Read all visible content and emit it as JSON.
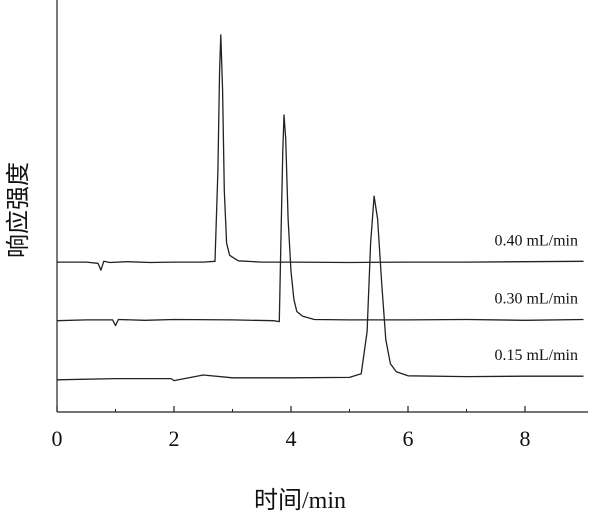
{
  "chart_data": {
    "type": "line",
    "xlabel": "时间/min",
    "ylabel": "响应强度",
    "xlim": [
      0,
      9
    ],
    "ylim": [
      0,
      100
    ],
    "xticks": [
      0,
      2,
      4,
      6,
      8
    ],
    "xminor_ticks": [
      1,
      3,
      5,
      7
    ],
    "grid": false,
    "series": [
      {
        "name": "0.40 mL/min",
        "color": "#222222",
        "x": [
          0,
          0.5,
          0.7,
          0.75,
          0.8,
          0.9,
          1.2,
          1.6,
          2.0,
          2.5,
          2.7,
          2.75,
          2.78,
          2.8,
          2.83,
          2.86,
          2.9,
          2.95,
          3.0,
          3.1,
          3.5,
          4.0,
          5.0,
          6.0,
          7.0,
          8.0,
          9.0
        ],
        "values": [
          37.3,
          37.3,
          37.0,
          35.3,
          37.5,
          37.2,
          37.4,
          37.2,
          37.3,
          37.3,
          37.5,
          60,
          85,
          93.8,
          80,
          55,
          42,
          39,
          38.5,
          37.6,
          37.3,
          37.3,
          37.2,
          37.3,
          37.3,
          37.4,
          37.5
        ]
      },
      {
        "name": "0.30 mL/min",
        "color": "#222222",
        "x": [
          0,
          0.5,
          0.95,
          1.0,
          1.05,
          1.5,
          2.0,
          3.0,
          3.7,
          3.8,
          3.83,
          3.86,
          3.88,
          3.91,
          3.95,
          4.0,
          4.05,
          4.1,
          4.2,
          4.4,
          5,
          6,
          7,
          8,
          9
        ],
        "values": [
          22.7,
          22.9,
          22.9,
          21.5,
          23,
          22.8,
          23,
          22.9,
          22.7,
          22.5,
          45,
          65,
          73.9,
          68,
          48,
          35,
          28,
          25,
          23.8,
          23,
          22.9,
          22.9,
          23,
          22.8,
          23
        ]
      },
      {
        "name": "0.15 mL/min",
        "color": "#222222",
        "x": [
          0,
          1,
          1.95,
          2.0,
          2.5,
          3.0,
          4.0,
          5.0,
          5.2,
          5.3,
          5.36,
          5.42,
          5.48,
          5.55,
          5.62,
          5.7,
          5.8,
          6.0,
          7,
          8,
          9
        ],
        "values": [
          8.0,
          8.3,
          8.3,
          7.8,
          9.2,
          8.5,
          8.5,
          8.6,
          9.5,
          20,
          42,
          53.7,
          48,
          32,
          18,
          12,
          10,
          9,
          8.8,
          8.9,
          8.9
        ]
      }
    ]
  }
}
